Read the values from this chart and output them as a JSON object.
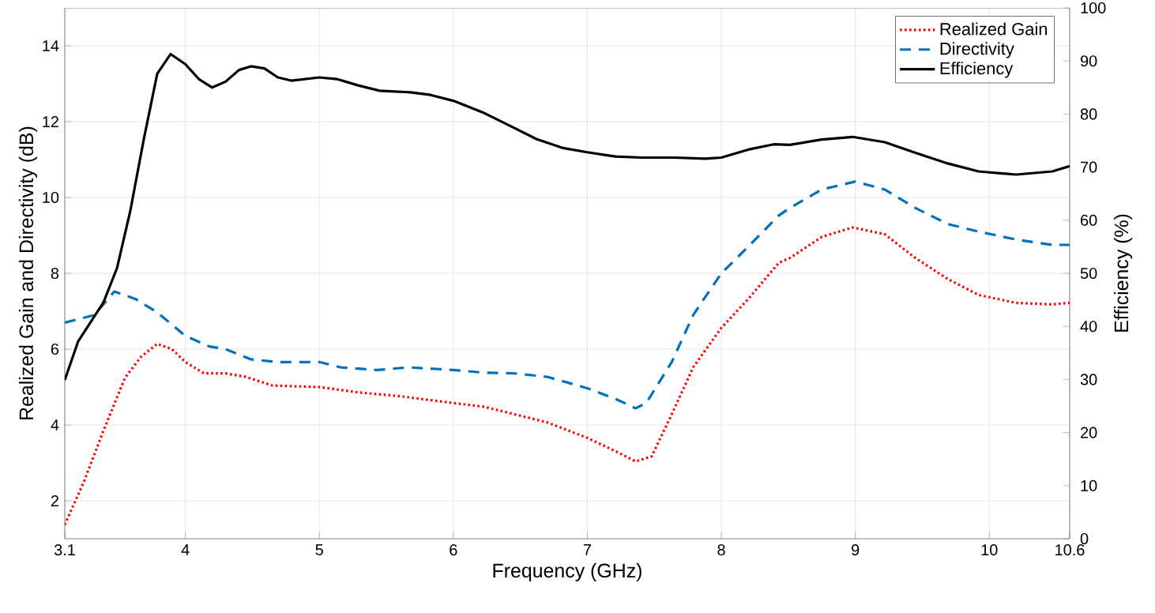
{
  "chart_data": {
    "type": "line",
    "xlabel": "Frequency (GHz)",
    "ylabel": "Realized Gain and Directivity (dB)",
    "y2label": "Efficiency (%)",
    "xlim": [
      3.1,
      10.6
    ],
    "xticks": [
      3.1,
      4,
      5,
      6,
      7,
      8,
      9,
      10,
      10.6
    ],
    "ylim": [
      1,
      15
    ],
    "yticks": [
      2,
      4,
      6,
      8,
      10,
      12,
      14
    ],
    "y2lim": [
      0,
      100
    ],
    "y2ticks": [
      0,
      10,
      20,
      30,
      40,
      50,
      60,
      70,
      80,
      90,
      100
    ],
    "grid": true,
    "legend": "top right",
    "series": [
      {
        "name": "Realized Gain",
        "color": "#ff0000",
        "line_style": "dotted",
        "x": [
          3.1,
          3.24,
          3.39,
          3.55,
          3.67,
          3.79,
          3.9,
          4.0,
          4.14,
          4.3,
          4.45,
          4.65,
          5.0,
          5.29,
          5.6,
          6.0,
          6.23,
          6.46,
          6.7,
          7.0,
          7.21,
          7.36,
          7.48,
          7.63,
          7.79,
          8.0,
          8.2,
          8.43,
          8.51,
          8.75,
          8.98,
          9.22,
          9.45,
          9.69,
          9.92,
          10.2,
          10.47,
          10.6
        ],
        "values": [
          1.37,
          2.48,
          3.86,
          5.25,
          5.8,
          6.14,
          6.0,
          5.66,
          5.36,
          5.36,
          5.27,
          5.04,
          5.0,
          4.86,
          4.76,
          4.58,
          4.48,
          4.28,
          4.07,
          3.66,
          3.31,
          3.04,
          3.17,
          4.28,
          5.52,
          6.56,
          7.32,
          8.28,
          8.4,
          8.96,
          9.21,
          9.03,
          8.4,
          7.85,
          7.43,
          7.22,
          7.18,
          7.22
        ]
      },
      {
        "name": "Directivity",
        "color": "#0072bd",
        "line_style": "dashed",
        "x": [
          3.1,
          3.32,
          3.47,
          3.63,
          3.79,
          4.0,
          4.18,
          4.3,
          4.49,
          4.69,
          5.0,
          5.16,
          5.43,
          5.67,
          6.0,
          6.23,
          6.46,
          6.7,
          7.0,
          7.21,
          7.36,
          7.44,
          7.63,
          7.79,
          8.0,
          8.2,
          8.43,
          8.51,
          8.75,
          9.0,
          9.22,
          9.45,
          9.69,
          9.92,
          10.2,
          10.47,
          10.6
        ],
        "values": [
          6.7,
          6.9,
          7.52,
          7.32,
          6.97,
          6.35,
          6.07,
          6.0,
          5.73,
          5.66,
          5.66,
          5.52,
          5.45,
          5.52,
          5.45,
          5.38,
          5.36,
          5.27,
          4.97,
          4.69,
          4.44,
          4.58,
          5.66,
          6.9,
          8.0,
          8.7,
          9.53,
          9.72,
          10.21,
          10.42,
          10.21,
          9.72,
          9.3,
          9.1,
          8.89,
          8.75,
          8.75
        ]
      },
      {
        "name": "Efficiency",
        "color": "#000000",
        "line_style": "solid",
        "axis": "y2",
        "x": [
          3.1,
          3.2,
          3.39,
          3.49,
          3.59,
          3.69,
          3.79,
          3.89,
          4.0,
          4.1,
          4.2,
          4.3,
          4.4,
          4.49,
          4.59,
          4.69,
          4.79,
          5.0,
          5.13,
          5.29,
          5.45,
          5.68,
          5.83,
          6.0,
          6.23,
          6.43,
          6.62,
          6.82,
          7.0,
          7.21,
          7.41,
          7.65,
          7.88,
          8.0,
          8.2,
          8.39,
          8.51,
          8.75,
          8.98,
          9.22,
          9.45,
          9.69,
          9.92,
          10.2,
          10.47,
          10.6
        ],
        "values": [
          29.9,
          37.2,
          44.6,
          51,
          61.9,
          75.3,
          87.6,
          91.3,
          89.4,
          86.6,
          85,
          86.1,
          88.3,
          89,
          88.6,
          86.9,
          86.3,
          86.9,
          86.6,
          85.4,
          84.4,
          84.1,
          83.6,
          82.5,
          80.2,
          77.7,
          75.3,
          73.6,
          72.8,
          72,
          71.8,
          71.8,
          71.6,
          71.8,
          73.3,
          74.3,
          74.2,
          75.2,
          75.7,
          74.7,
          72.7,
          70.7,
          69.2,
          68.6,
          69.2,
          70.2
        ]
      }
    ]
  }
}
